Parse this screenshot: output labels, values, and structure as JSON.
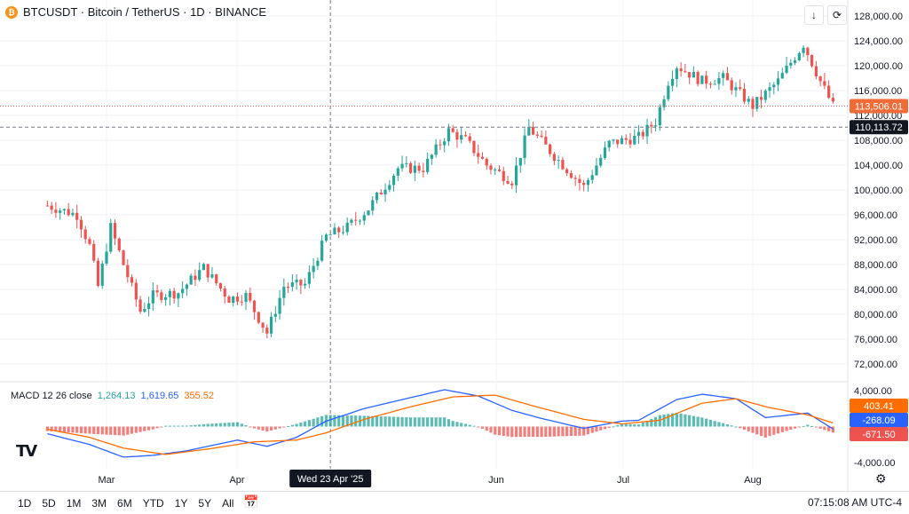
{
  "header": {
    "symbol_title": "BTCUSDT · Bitcoin / TetherUS · 1D · BINANCE",
    "coin_icon": "bitcoin-icon"
  },
  "toolbar": {
    "download_icon": "arrow-down-icon",
    "fullscreen_icon": "expand-icon"
  },
  "macd": {
    "label": "MACD 12 26 close",
    "hist_value": "1,264.13",
    "macd_value": "1,619.65",
    "signal_value": "355.52",
    "colors": {
      "macd": "#2962ff",
      "signal": "#ff6d00",
      "hist_pos": "#26a69a",
      "hist_neg": "#ef5350"
    }
  },
  "price_badges": {
    "last": "113,506.01",
    "crosshair": "110,113.72"
  },
  "macd_badges": {
    "signal": "403.41",
    "macd": "-268.09",
    "hist": "-671.50"
  },
  "crosshair_date": "Wed 23 Apr '25",
  "bottom": {
    "ranges": [
      "1D",
      "5D",
      "1M",
      "3M",
      "6M",
      "YTD",
      "1Y",
      "5Y",
      "All"
    ],
    "clock": "07:15:08 AM UTC-4",
    "calendar_icon": "calendar-icon",
    "settings_icon": "gear-icon"
  },
  "chart_data": [
    {
      "type": "candlestick",
      "title": "BTCUSDT · Bitcoin / TetherUS · 1D · BINANCE",
      "y_ticks": [
        "128,000.00",
        "124,000.00",
        "120,000.00",
        "116,000.00",
        "112,000.00",
        "108,000.00",
        "104,000.00",
        "100,000.00",
        "96,000.00",
        "92,000.00",
        "88,000.00",
        "84,000.00",
        "80,000.00",
        "76,000.00",
        "72,000.00"
      ],
      "ylim": [
        70000,
        129000
      ],
      "x_ticks": [
        "Mar",
        "Apr",
        "Jun",
        "Jul",
        "Aug"
      ],
      "colors": {
        "up": "#26a69a",
        "down": "#ef5350"
      },
      "close_path": [
        [
          "2025-02-15",
          97500
        ],
        [
          "2025-02-22",
          96000
        ],
        [
          "2025-02-25",
          91000
        ],
        [
          "2025-02-27",
          84500
        ],
        [
          "2025-03-02",
          94000
        ],
        [
          "2025-03-05",
          88000
        ],
        [
          "2025-03-09",
          80500
        ],
        [
          "2025-03-12",
          83000
        ],
        [
          "2025-03-18",
          83500
        ],
        [
          "2025-03-24",
          87500
        ],
        [
          "2025-03-30",
          82500
        ],
        [
          "2025-04-03",
          83000
        ],
        [
          "2025-04-08",
          77000
        ],
        [
          "2025-04-12",
          84500
        ],
        [
          "2025-04-17",
          84800
        ],
        [
          "2025-04-22",
          92500
        ],
        [
          "2025-04-27",
          94000
        ],
        [
          "2025-05-02",
          97000
        ],
        [
          "2025-05-09",
          103500
        ],
        [
          "2025-05-15",
          103500
        ],
        [
          "2025-05-21",
          109500
        ],
        [
          "2025-05-25",
          108000
        ],
        [
          "2025-05-30",
          104000
        ],
        [
          "2025-06-05",
          101500
        ],
        [
          "2025-06-09",
          110000
        ],
        [
          "2025-06-15",
          105500
        ],
        [
          "2025-06-22",
          100500
        ],
        [
          "2025-06-28",
          107500
        ],
        [
          "2025-07-05",
          108500
        ],
        [
          "2025-07-09",
          111000
        ],
        [
          "2025-07-12",
          117500
        ],
        [
          "2025-07-14",
          120000
        ],
        [
          "2025-07-20",
          117500
        ],
        [
          "2025-07-25",
          118000
        ],
        [
          "2025-08-01",
          113500
        ],
        [
          "2025-08-07",
          117500
        ],
        [
          "2025-08-13",
          123500
        ],
        [
          "2025-08-17",
          117500
        ],
        [
          "2025-08-20",
          113500
        ]
      ]
    },
    {
      "type": "line",
      "title": "MACD 12 26 close",
      "y_ticks": [
        "4,000.00",
        "-4,000.00"
      ],
      "ylim": [
        -4800,
        4800
      ],
      "series": [
        {
          "name": "MACD",
          "points": [
            [
              "2025-02-15",
              -800
            ],
            [
              "2025-02-25",
              -2000
            ],
            [
              "2025-03-05",
              -3400
            ],
            [
              "2025-03-12",
              -3200
            ],
            [
              "2025-03-20",
              -2700
            ],
            [
              "2025-04-01",
              -1500
            ],
            [
              "2025-04-08",
              -2200
            ],
            [
              "2025-04-15",
              -1200
            ],
            [
              "2025-04-22",
              600
            ],
            [
              "2025-05-01",
              2000
            ],
            [
              "2025-05-10",
              3000
            ],
            [
              "2025-05-20",
              4100
            ],
            [
              "2025-05-28",
              3400
            ],
            [
              "2025-06-05",
              1800
            ],
            [
              "2025-06-12",
              900
            ],
            [
              "2025-06-22",
              -200
            ],
            [
              "2025-07-01",
              600
            ],
            [
              "2025-07-05",
              700
            ],
            [
              "2025-07-14",
              3000
            ],
            [
              "2025-07-20",
              3600
            ],
            [
              "2025-07-28",
              3100
            ],
            [
              "2025-08-04",
              1000
            ],
            [
              "2025-08-14",
              1500
            ],
            [
              "2025-08-20",
              -268
            ]
          ]
        },
        {
          "name": "Signal",
          "points": [
            [
              "2025-02-15",
              -300
            ],
            [
              "2025-02-25",
              -1200
            ],
            [
              "2025-03-05",
              -2400
            ],
            [
              "2025-03-15",
              -3100
            ],
            [
              "2025-03-25",
              -2500
            ],
            [
              "2025-04-05",
              -1700
            ],
            [
              "2025-04-15",
              -1500
            ],
            [
              "2025-04-22",
              -700
            ],
            [
              "2025-05-01",
              800
            ],
            [
              "2025-05-12",
              2200
            ],
            [
              "2025-05-22",
              3300
            ],
            [
              "2025-06-01",
              3500
            ],
            [
              "2025-06-10",
              2300
            ],
            [
              "2025-06-22",
              800
            ],
            [
              "2025-07-01",
              300
            ],
            [
              "2025-07-10",
              700
            ],
            [
              "2025-07-20",
              2600
            ],
            [
              "2025-07-28",
              3100
            ],
            [
              "2025-08-05",
              2100
            ],
            [
              "2025-08-14",
              1300
            ],
            [
              "2025-08-20",
              403
            ]
          ]
        }
      ]
    }
  ]
}
